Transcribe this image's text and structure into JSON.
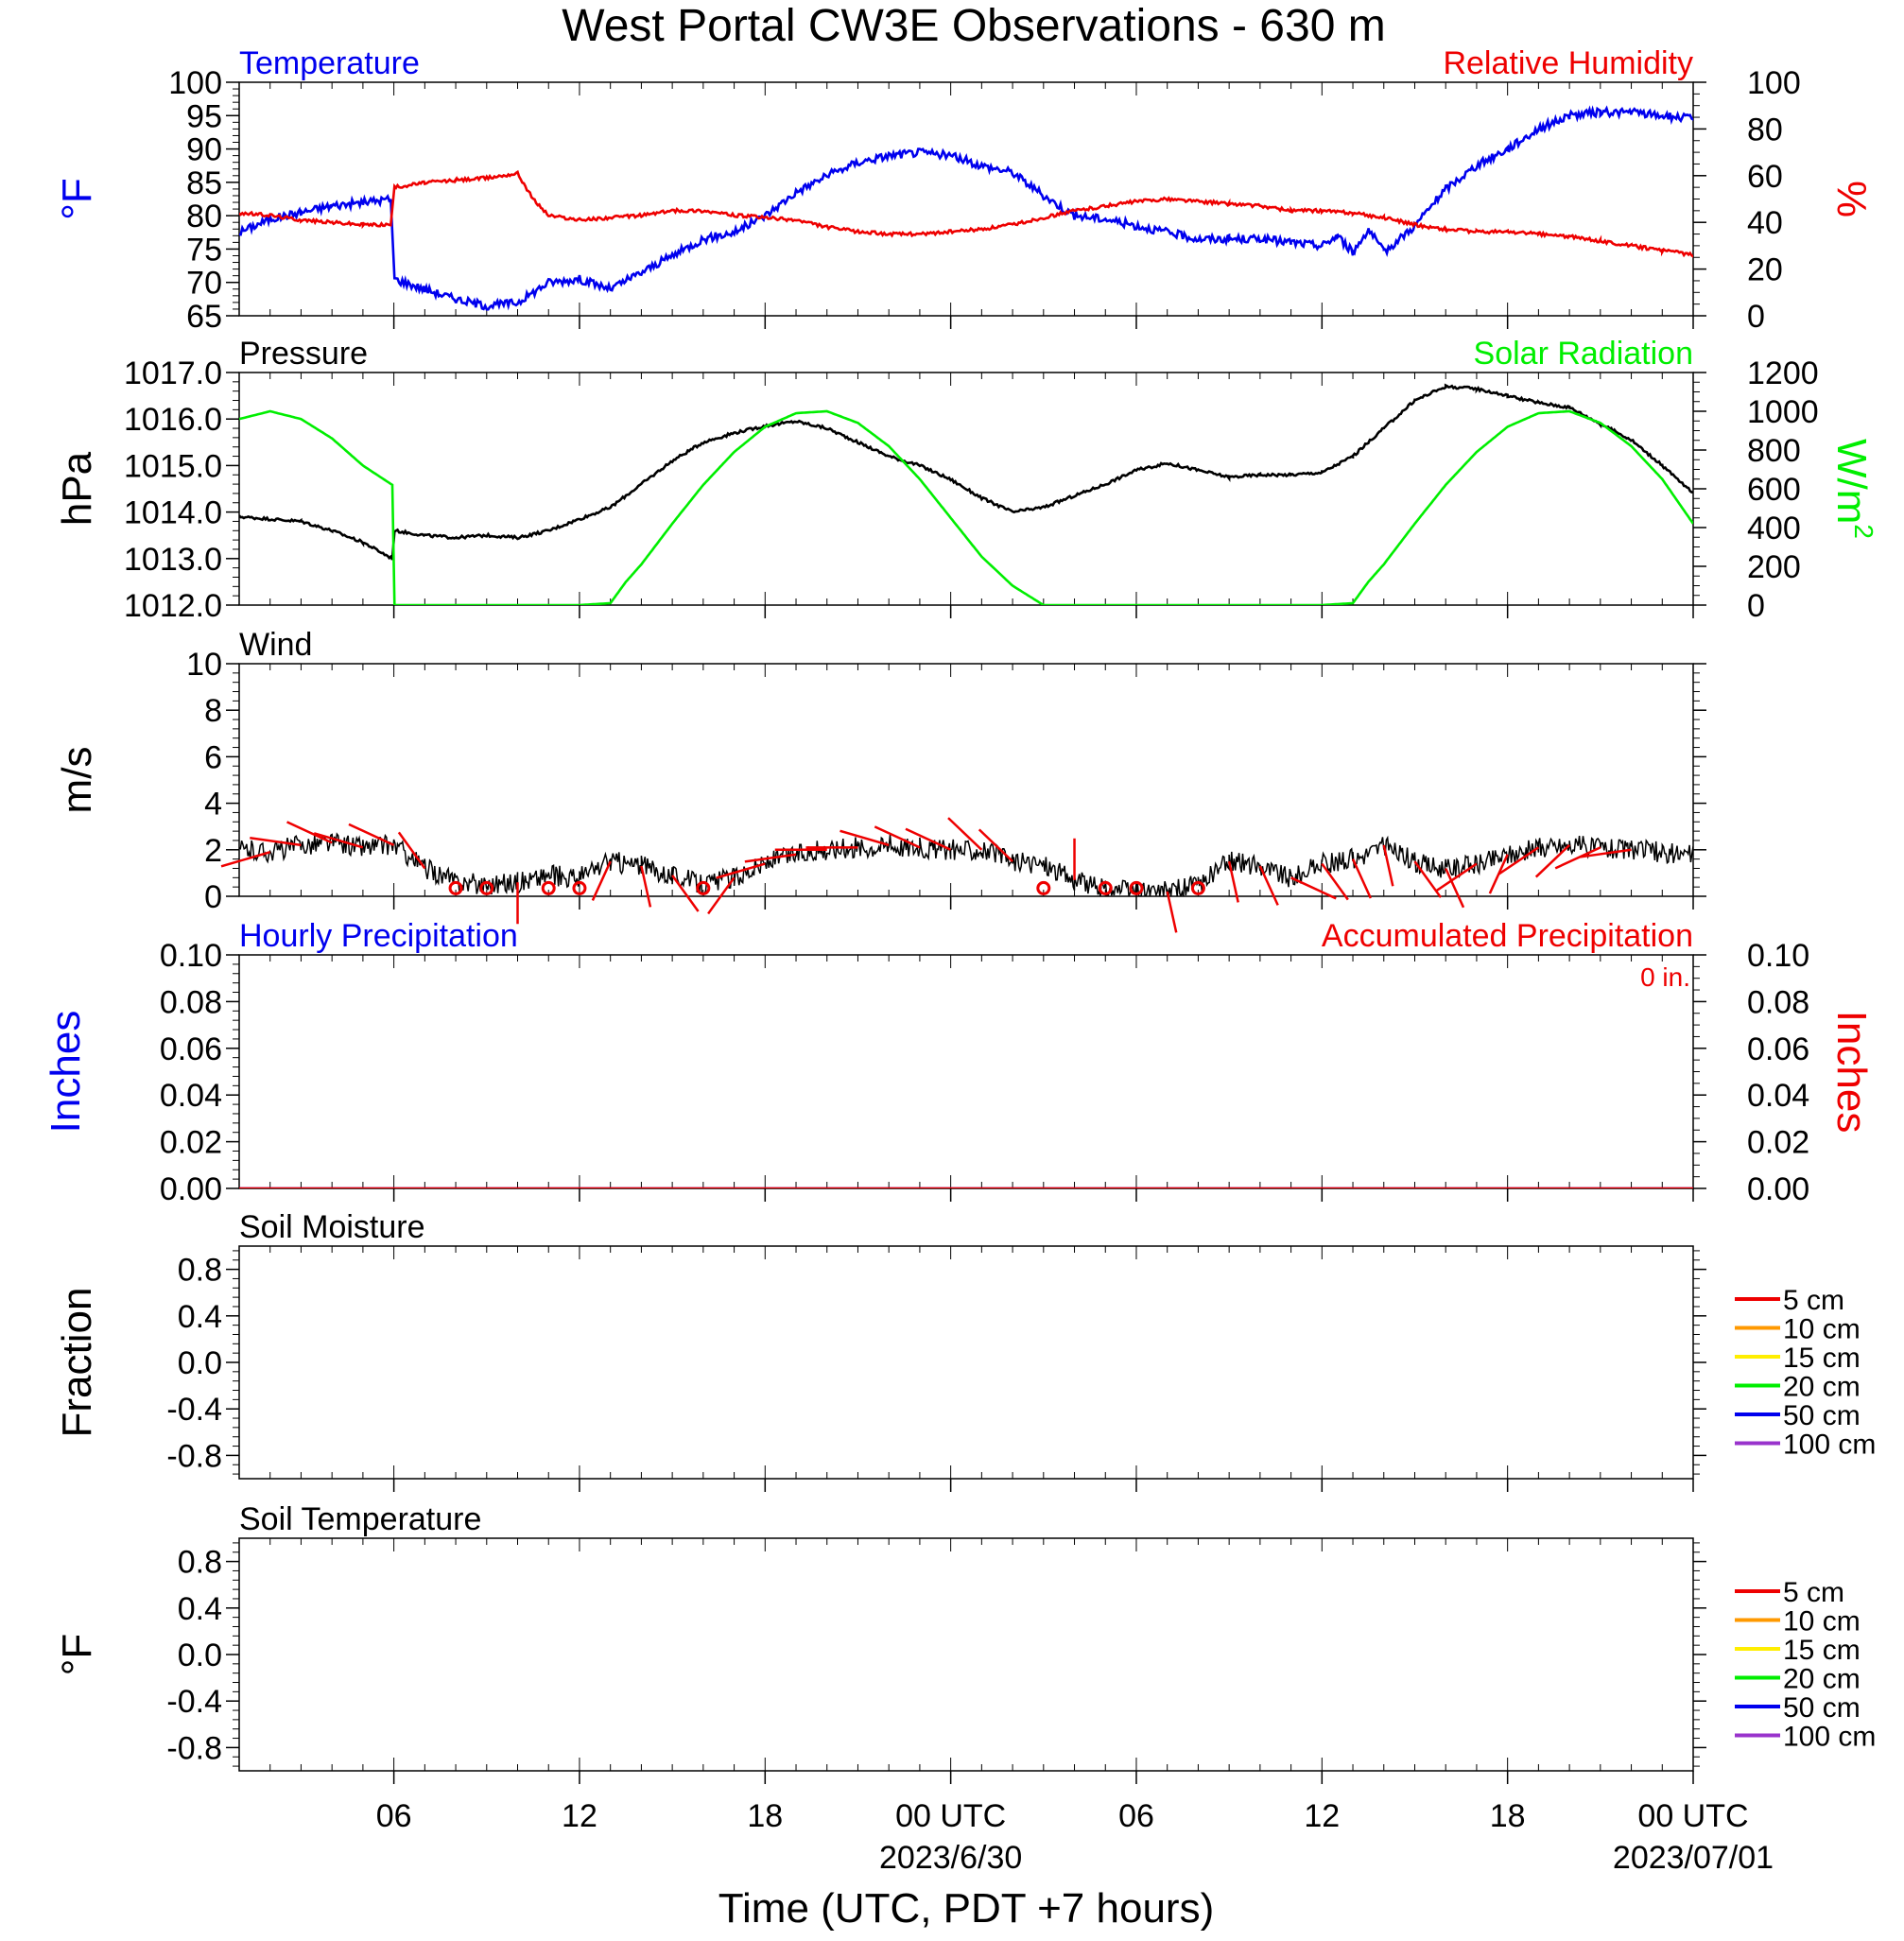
{
  "title": "West Portal CW3E Observations - 630 m",
  "xlabel": "Time (UTC, PDT +7 hours)",
  "x_ticks": {
    "major_labels": [
      "06",
      "12",
      "18",
      "00 UTC",
      "06",
      "12",
      "18",
      "00 UTC"
    ],
    "major_hours": [
      6,
      12,
      18,
      24,
      30,
      36,
      42,
      48
    ],
    "date_labels": [
      {
        "hour": 24,
        "text": "2023/6/30"
      },
      {
        "hour": 48,
        "text": "2023/07/01"
      }
    ],
    "minor_step_hours": 1,
    "xlim_hours": [
      1,
      48
    ]
  },
  "colors": {
    "temperature": "#0000ee",
    "humidity": "#ee0000",
    "pressure": "#000000",
    "solar": "#00ee00",
    "wind": "#000000",
    "barb": "#ee0000",
    "axis": "#000000"
  },
  "chart_data": [
    {
      "id": "temp_rh",
      "type": "line",
      "left_title": "Temperature",
      "right_title": "Relative Humidity",
      "ylabel_left": "°F",
      "ylabel_right": "%",
      "ylim_left": [
        65,
        100
      ],
      "ylim_right": [
        0,
        100
      ],
      "yticks_left": [
        "65",
        "70",
        "75",
        "80",
        "85",
        "90",
        "95",
        "100"
      ],
      "yticks_right": [
        "0",
        "20",
        "40",
        "60",
        "80",
        "100"
      ],
      "series": [
        {
          "name": "Temperature",
          "axis": "left",
          "color": "#0000ee",
          "x": [
            1,
            2,
            3,
            4,
            5,
            5.9,
            6.02,
            7,
            8,
            9,
            10,
            11,
            12,
            13,
            14,
            15,
            16,
            17,
            18,
            19,
            20,
            21,
            22,
            23,
            24,
            25,
            26,
            27,
            28,
            29,
            30,
            31,
            32,
            33,
            34,
            35,
            36,
            36.5,
            37,
            37.5,
            38,
            39,
            40,
            41,
            42,
            43,
            44,
            45,
            46,
            47,
            48
          ],
          "y": [
            77.5,
            79.5,
            80.5,
            81.5,
            82,
            82.5,
            70.5,
            69,
            67.5,
            66.5,
            67,
            70,
            70.5,
            69,
            71.5,
            74,
            76.5,
            77.5,
            80,
            83.5,
            86,
            88,
            89,
            89.5,
            89,
            87.5,
            86.5,
            83,
            80,
            79.5,
            78.5,
            77.5,
            76.5,
            76.5,
            76.5,
            76,
            75.5,
            77,
            74.5,
            78,
            74.5,
            78.5,
            84,
            87.5,
            90,
            93,
            95,
            95.5,
            95.5,
            95,
            94.5
          ]
        },
        {
          "name": "Relative Humidity",
          "axis": "right",
          "color": "#ee0000",
          "x": [
            1,
            2,
            3,
            4,
            5,
            5.9,
            6.02,
            7,
            8,
            9,
            10,
            10.5,
            11,
            12,
            13,
            14,
            15,
            16,
            17,
            18,
            19,
            20,
            21,
            22,
            23,
            24,
            25,
            26,
            27,
            28,
            29,
            30,
            31,
            32,
            33,
            34,
            35,
            36,
            37,
            38,
            39,
            40,
            41,
            42,
            43,
            44,
            45,
            46,
            47,
            48
          ],
          "y": [
            44,
            43,
            41,
            40,
            39,
            39,
            55,
            57,
            58,
            59,
            61,
            50,
            43,
            41,
            42,
            43,
            45,
            45,
            43,
            42,
            41,
            38,
            36,
            35,
            35,
            36,
            37,
            39,
            42,
            45,
            47,
            49,
            50,
            49,
            48,
            47,
            45,
            45,
            44,
            42,
            39,
            37,
            36,
            36,
            35,
            34,
            32,
            30,
            28,
            26
          ]
        }
      ]
    },
    {
      "id": "pressure_solar",
      "type": "line",
      "left_title": "Pressure",
      "right_title": "Solar Radiation",
      "ylabel_left": "hPa",
      "ylabel_right": "W/m",
      "ylabel_right_sup": "2",
      "ylim_left": [
        1012,
        1017
      ],
      "ylim_right": [
        0,
        1200
      ],
      "yticks_left": [
        "1012.0",
        "1013.0",
        "1014.0",
        "1015.0",
        "1016.0",
        "1017.0"
      ],
      "yticks_right": [
        "0",
        "200",
        "400",
        "600",
        "800",
        "1000",
        "1200"
      ],
      "series": [
        {
          "name": "Pressure",
          "axis": "left",
          "color": "#000000",
          "x": [
            1,
            2,
            3,
            4,
            5,
            5.95,
            6.02,
            7,
            8,
            9,
            10,
            11,
            12,
            13,
            14,
            15,
            16,
            17,
            18,
            19,
            20,
            21,
            22,
            23,
            24,
            25,
            26,
            27,
            28,
            29,
            30,
            31,
            32,
            33,
            34,
            35,
            36,
            37,
            38,
            39,
            40,
            41,
            42,
            43,
            44,
            45,
            46,
            47,
            48
          ],
          "y": [
            1013.9,
            1013.85,
            1013.8,
            1013.6,
            1013.35,
            1013.0,
            1013.6,
            1013.5,
            1013.45,
            1013.5,
            1013.45,
            1013.6,
            1013.85,
            1014.1,
            1014.6,
            1015.1,
            1015.5,
            1015.7,
            1015.85,
            1015.95,
            1015.8,
            1015.5,
            1015.2,
            1015.0,
            1014.7,
            1014.3,
            1014.0,
            1014.1,
            1014.35,
            1014.6,
            1014.9,
            1015.05,
            1014.9,
            1014.75,
            1014.8,
            1014.8,
            1014.85,
            1015.2,
            1015.8,
            1016.4,
            1016.7,
            1016.65,
            1016.5,
            1016.35,
            1016.25,
            1015.9,
            1015.55,
            1015.0,
            1014.4
          ]
        },
        {
          "name": "Solar Radiation",
          "axis": "right",
          "color": "#00ee00",
          "x": [
            1,
            2,
            3,
            4,
            5,
            5.95,
            6.02,
            7,
            8,
            9,
            10,
            11,
            12,
            13,
            13.5,
            14,
            15,
            16,
            17,
            18,
            19,
            20,
            21,
            22,
            23,
            24,
            25,
            26,
            27,
            28,
            29,
            30,
            31,
            32,
            33,
            34,
            35,
            36,
            37,
            37.5,
            38,
            39,
            40,
            41,
            42,
            43,
            44,
            45,
            46,
            47,
            48
          ],
          "y": [
            960,
            1000,
            960,
            860,
            720,
            620,
            0,
            0,
            0,
            0,
            0,
            0,
            0,
            10,
            120,
            210,
            420,
            620,
            790,
            920,
            990,
            1000,
            940,
            820,
            650,
            450,
            250,
            100,
            0,
            0,
            0,
            0,
            0,
            0,
            0,
            0,
            0,
            0,
            10,
            120,
            210,
            420,
            620,
            790,
            920,
            990,
            1000,
            940,
            820,
            650,
            420
          ]
        }
      ]
    },
    {
      "id": "wind",
      "type": "line",
      "left_title": "Wind",
      "ylabel_left": "m/s",
      "ylim_left": [
        0,
        10
      ],
      "yticks_left": [
        "0",
        "2",
        "4",
        "6",
        "8",
        "10"
      ],
      "series": [
        {
          "name": "Wind Speed",
          "axis": "left",
          "color": "#000000",
          "x": [
            1,
            2,
            3,
            4,
            5,
            6,
            7,
            8,
            9,
            10,
            11,
            12,
            13,
            14,
            15,
            16,
            17,
            18,
            19,
            20,
            21,
            22,
            23,
            24,
            25,
            26,
            27,
            28,
            29,
            30,
            31,
            32,
            33,
            34,
            35,
            36,
            37,
            38,
            39,
            40,
            41,
            42,
            43,
            44,
            45,
            46,
            47,
            48
          ],
          "y": [
            2.0,
            1.9,
            2.2,
            2.3,
            2.1,
            2.2,
            1.2,
            0.6,
            0.5,
            0.6,
            0.9,
            0.8,
            1.5,
            1.3,
            0.9,
            0.5,
            0.8,
            1.4,
            1.8,
            2.0,
            2.1,
            2.2,
            2.1,
            2.0,
            2.0,
            1.5,
            1.4,
            0.7,
            0.3,
            0.2,
            0.2,
            0.5,
            1.5,
            1.3,
            0.8,
            1.4,
            1.6,
            2.2,
            1.5,
            1.2,
            1.4,
            1.8,
            2.1,
            2.2,
            2.1,
            2.0,
            1.9,
            1.8
          ]
        }
      ],
      "barbs": {
        "hours": [
          2,
          3,
          4,
          5,
          6,
          7,
          8,
          9,
          10,
          11,
          12,
          13,
          14,
          15,
          16,
          17,
          18,
          19,
          20,
          21,
          22,
          23,
          24,
          25,
          26,
          27,
          28,
          29,
          30,
          31,
          32,
          33,
          34,
          35,
          36,
          37,
          38,
          39,
          40,
          41,
          42,
          43,
          44,
          45,
          46
        ],
        "speed": [
          2,
          2,
          2,
          2,
          2,
          1,
          0,
          0,
          1,
          0,
          0,
          1,
          1,
          1,
          0,
          1,
          1,
          1,
          2,
          2,
          2,
          2,
          2,
          1,
          1,
          1,
          0,
          1,
          0,
          1,
          0,
          1,
          1,
          1,
          1,
          1,
          1,
          1,
          1,
          1,
          1,
          2,
          2,
          1,
          1
        ],
        "direction_deg": [
          250,
          280,
          300,
          290,
          300,
          330,
          0,
          0,
          180,
          0,
          0,
          200,
          170,
          150,
          0,
          210,
          250,
          260,
          270,
          270,
          290,
          300,
          300,
          320,
          320,
          20,
          0,
          200,
          0,
          170,
          0,
          170,
          160,
          120,
          150,
          160,
          170,
          150,
          160,
          230,
          200,
          230,
          220,
          240,
          260
        ],
        "calm_hours": [
          8,
          9,
          11,
          12,
          16,
          27,
          29,
          30,
          32
        ]
      }
    },
    {
      "id": "precip",
      "type": "line",
      "left_title": "Hourly Precipitation",
      "right_title": "Accumulated Precipitation",
      "right_note": "0 in.",
      "ylabel_left": "Inches",
      "ylabel_right": "Inches",
      "ylim_left": [
        0,
        0.1
      ],
      "ylim_right": [
        0,
        0.1
      ],
      "yticks_left": [
        "0.00",
        "0.02",
        "0.04",
        "0.06",
        "0.08",
        "0.10"
      ],
      "yticks_right": [
        "0.00",
        "0.02",
        "0.04",
        "0.06",
        "0.08",
        "0.10"
      ],
      "series": [
        {
          "name": "Hourly Precipitation",
          "axis": "left",
          "color": "#0000ee",
          "x": [
            1,
            48
          ],
          "y": [
            0,
            0
          ]
        },
        {
          "name": "Accumulated Precipitation",
          "axis": "right",
          "color": "#ee0000",
          "x": [
            1,
            48
          ],
          "y": [
            0,
            0
          ]
        }
      ]
    },
    {
      "id": "soil_moisture",
      "type": "line",
      "left_title": "Soil Moisture",
      "ylabel_left": "Fraction",
      "ylim_left": [
        -1,
        1
      ],
      "yticks_left": [
        "-0.8",
        "-0.4",
        "0.0",
        "0.4",
        "0.8"
      ],
      "legend": [
        "5 cm",
        "10 cm",
        "15 cm",
        "20 cm",
        "50 cm",
        "100 cm"
      ],
      "legend_colors": [
        "#ee0000",
        "#ff9900",
        "#ffee00",
        "#00ee00",
        "#0000ee",
        "#9933cc"
      ],
      "series": []
    },
    {
      "id": "soil_temp",
      "type": "line",
      "left_title": "Soil Temperature",
      "ylabel_left": "°F",
      "ylim_left": [
        -1,
        1
      ],
      "yticks_left": [
        "-0.8",
        "-0.4",
        "0.0",
        "0.4",
        "0.8"
      ],
      "legend": [
        "5 cm",
        "10 cm",
        "15 cm",
        "20 cm",
        "50 cm",
        "100 cm"
      ],
      "legend_colors": [
        "#ee0000",
        "#ff9900",
        "#ffee00",
        "#00ee00",
        "#0000ee",
        "#9933cc"
      ],
      "series": []
    }
  ]
}
